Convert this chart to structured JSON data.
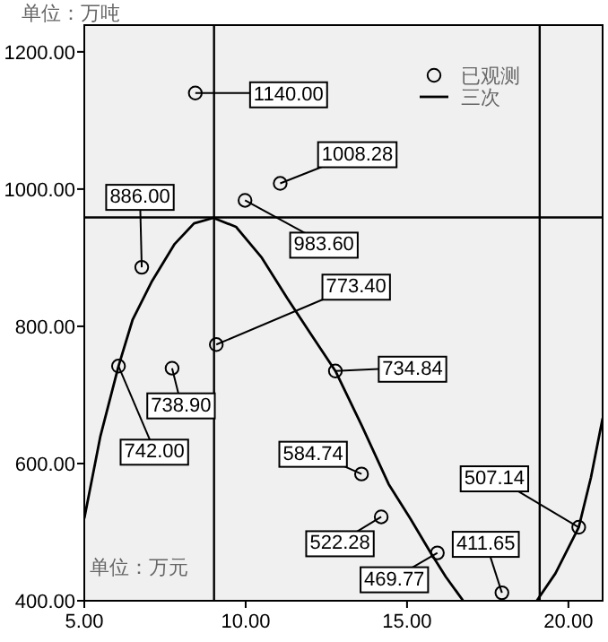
{
  "chart_data": {
    "type": "scatter",
    "xlim": [
      5,
      21.06
    ],
    "ylim": [
      400,
      1239
    ],
    "xticks": [
      {
        "value": 5,
        "label": "5.00"
      },
      {
        "value": 10,
        "label": "10.00"
      },
      {
        "value": 15,
        "label": "15.00"
      },
      {
        "value": 20,
        "label": "20.00"
      }
    ],
    "yticks": [
      {
        "value": 400,
        "label": "400.00"
      },
      {
        "value": 600,
        "label": "600.00"
      },
      {
        "value": 800,
        "label": "800.00"
      },
      {
        "value": 1000,
        "label": "1000.00"
      },
      {
        "value": 1200,
        "label": "1200.00"
      }
    ],
    "series": [
      {
        "name": "已观测",
        "color": "#000000",
        "marker": "circle",
        "value_labels": [
          "1140.00",
          "1008.28",
          "983.60",
          "886.00",
          "773.40",
          "742.00",
          "738.90",
          "734.84",
          "584.74",
          "522.28",
          "469.77",
          "411.65",
          "507.14"
        ],
        "x": [
          8.44,
          11.07,
          9.98,
          6.78,
          9.09,
          6.06,
          7.72,
          12.78,
          13.59,
          14.2,
          15.94,
          17.94,
          20.32
        ],
        "values": [
          1140.0,
          1008.28,
          983.6,
          886.0,
          773.4,
          742.0,
          738.9,
          734.84,
          584.74,
          522.28,
          469.77,
          411.65,
          507.14
        ]
      },
      {
        "name": "三次",
        "type": "line",
        "color": "#000000",
        "x": [
          5,
          5.5,
          6.06,
          6.5,
          7.1,
          7.8,
          8.4,
          9.0,
          9.7,
          10.5,
          11.3,
          12.0,
          12.78,
          13.6,
          14.43,
          15.1,
          15.72,
          16.2,
          16.74,
          null,
          19.02,
          19.6,
          20.32,
          20.7,
          21.06
        ],
        "values": [
          520,
          640,
          742,
          810,
          866,
          920,
          950,
          958,
          945,
          900,
          840,
          790,
          735,
          655,
          570,
          520,
          471,
          435,
          400,
          null,
          400,
          440,
          507,
          580,
          666
        ]
      }
    ],
    "ref_lines": [
      {
        "axis": "x",
        "value": 9.02,
        "color": "#000000"
      },
      {
        "axis": "x",
        "value": 19.11,
        "color": "#000000"
      },
      {
        "axis": "y",
        "value": 958.7,
        "color": "#000000"
      }
    ],
    "legend": "top right",
    "annotations": [
      "单位：万吨",
      "单位：万元"
    ]
  }
}
